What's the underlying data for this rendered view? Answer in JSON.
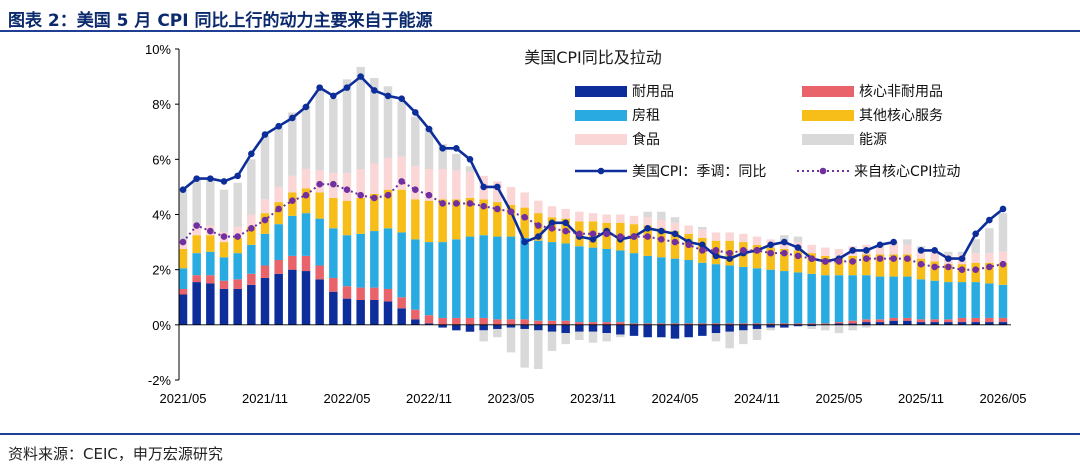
{
  "header": {
    "title": "图表 2：美国 5 月 CPI 同比上行的动力主要来自于能源"
  },
  "footer": {
    "source": "资料来源：CEIC，申万宏源研究"
  },
  "colors": {
    "durable": "#0d2e9a",
    "core_nondurable": "#e8646a",
    "shelter": "#29abe2",
    "other_services": "#f7bd18",
    "food": "#fbd6d6",
    "energy": "#d9d9d9",
    "cpi_line": "#0d2e9a",
    "core_line": "#7030a0",
    "accent_rule": "#1e3f93"
  },
  "chart_data": {
    "type": "bar",
    "stacked": true,
    "title": "美国CPI同比及拉动",
    "ylim": [
      -2,
      10
    ],
    "yticks": [
      "-2%",
      "0%",
      "2%",
      "4%",
      "6%",
      "8%",
      "10%"
    ],
    "ytick_values": [
      -2,
      0,
      2,
      4,
      6,
      8,
      10
    ],
    "xtick_labels": [
      "2021/05",
      "2021/11",
      "2022/05",
      "2022/11",
      "2023/05",
      "2023/11",
      "2024/05",
      "2024/11",
      "2025/05",
      "2025/11",
      "2026/05"
    ],
    "x": [
      "2021/05",
      "2021/06",
      "2021/07",
      "2021/08",
      "2021/09",
      "2021/10",
      "2021/11",
      "2021/12",
      "2022/01",
      "2022/02",
      "2022/03",
      "2022/04",
      "2022/05",
      "2022/06",
      "2022/07",
      "2022/08",
      "2022/09",
      "2022/10",
      "2022/11",
      "2022/12",
      "2023/01",
      "2023/02",
      "2023/03",
      "2023/04",
      "2023/05",
      "2023/06",
      "2023/07",
      "2023/08",
      "2023/09",
      "2023/10",
      "2023/11",
      "2023/12",
      "2024/01",
      "2024/02",
      "2024/03",
      "2024/04",
      "2024/05",
      "2024/06",
      "2024/07",
      "2024/08",
      "2024/09",
      "2024/10",
      "2024/11",
      "2024/12",
      "2025/01",
      "2025/02",
      "2025/03",
      "2025/04",
      "2025/05",
      "2025/06",
      "2025/07",
      "2025/08",
      "2025/09",
      "2025/10",
      "2025/11",
      "2025/12",
      "2026/01",
      "2026/02",
      "2026/03",
      "2026/04",
      "2026/05"
    ],
    "legend_position": "top-right",
    "grid": false,
    "series": [
      {
        "name": "耐用品",
        "color": "#0d2e9a",
        "values": [
          1.1,
          1.55,
          1.5,
          1.3,
          1.3,
          1.45,
          1.7,
          1.85,
          2.0,
          1.95,
          1.65,
          1.2,
          0.95,
          0.9,
          0.9,
          0.85,
          0.6,
          0.2,
          0.05,
          -0.1,
          -0.2,
          -0.25,
          -0.2,
          -0.15,
          -0.1,
          -0.15,
          -0.2,
          -0.25,
          -0.3,
          -0.25,
          -0.25,
          -0.3,
          -0.35,
          -0.4,
          -0.45,
          -0.45,
          -0.5,
          -0.45,
          -0.4,
          -0.3,
          -0.25,
          -0.2,
          -0.15,
          -0.1,
          -0.1,
          -0.05,
          -0.05,
          0.0,
          0.05,
          0.05,
          0.1,
          0.1,
          0.15,
          0.15,
          0.1,
          0.1,
          0.1,
          0.1,
          0.1,
          0.1,
          0.1
        ]
      },
      {
        "name": "核心非耐用品",
        "color": "#e8646a",
        "values": [
          0.2,
          0.25,
          0.3,
          0.3,
          0.35,
          0.4,
          0.45,
          0.5,
          0.5,
          0.55,
          0.5,
          0.5,
          0.45,
          0.45,
          0.45,
          0.45,
          0.4,
          0.35,
          0.3,
          0.25,
          0.25,
          0.25,
          0.25,
          0.2,
          0.2,
          0.2,
          0.15,
          0.15,
          0.15,
          0.1,
          0.1,
          0.1,
          0.1,
          0.05,
          0.05,
          0.05,
          0.05,
          0.05,
          0.05,
          0.05,
          0.05,
          0.05,
          0.05,
          0.05,
          0.05,
          0.05,
          0.05,
          0.05,
          0.05,
          0.1,
          0.1,
          0.1,
          0.1,
          0.1,
          0.1,
          0.1,
          0.1,
          0.15,
          0.15,
          0.15,
          0.15
        ]
      },
      {
        "name": "房租",
        "color": "#29abe2",
        "values": [
          0.75,
          0.8,
          0.85,
          0.85,
          0.95,
          1.05,
          1.15,
          1.3,
          1.45,
          1.55,
          1.7,
          1.8,
          1.85,
          1.95,
          2.05,
          2.2,
          2.35,
          2.55,
          2.65,
          2.75,
          2.85,
          2.95,
          3.0,
          3.0,
          3.0,
          2.95,
          2.9,
          2.85,
          2.8,
          2.75,
          2.7,
          2.65,
          2.6,
          2.55,
          2.45,
          2.4,
          2.35,
          2.3,
          2.2,
          2.15,
          2.1,
          2.05,
          2.0,
          1.95,
          1.9,
          1.85,
          1.8,
          1.75,
          1.7,
          1.65,
          1.6,
          1.55,
          1.5,
          1.5,
          1.45,
          1.4,
          1.35,
          1.3,
          1.3,
          1.25,
          1.2
        ]
      },
      {
        "name": "其他核心服务",
        "color": "#f7bd18",
        "values": [
          0.7,
          0.65,
          0.6,
          0.55,
          0.55,
          0.65,
          0.75,
          0.8,
          0.85,
          0.9,
          0.95,
          1.1,
          1.25,
          1.3,
          1.35,
          1.4,
          1.55,
          1.45,
          1.5,
          1.55,
          1.45,
          1.4,
          1.3,
          1.25,
          1.15,
          1.1,
          1.0,
          0.9,
          0.9,
          0.9,
          0.95,
          0.95,
          1.0,
          1.05,
          1.1,
          1.05,
          1.0,
          0.95,
          0.9,
          0.85,
          0.9,
          0.9,
          0.85,
          0.8,
          0.8,
          0.8,
          0.75,
          0.7,
          0.65,
          0.7,
          0.75,
          0.8,
          0.8,
          0.8,
          0.75,
          0.7,
          0.65,
          0.65,
          0.7,
          0.75,
          0.8
        ]
      },
      {
        "name": "食品",
        "color": "#fbd6d6",
        "values": [
          0.3,
          0.3,
          0.35,
          0.35,
          0.4,
          0.45,
          0.5,
          0.55,
          0.6,
          0.7,
          0.8,
          0.9,
          1.0,
          1.05,
          1.1,
          1.15,
          1.2,
          1.2,
          1.15,
          1.1,
          1.05,
          0.95,
          0.85,
          0.75,
          0.65,
          0.55,
          0.45,
          0.4,
          0.35,
          0.35,
          0.3,
          0.3,
          0.3,
          0.3,
          0.3,
          0.3,
          0.3,
          0.3,
          0.3,
          0.3,
          0.3,
          0.3,
          0.3,
          0.3,
          0.3,
          0.3,
          0.3,
          0.3,
          0.3,
          0.35,
          0.35,
          0.35,
          0.35,
          0.35,
          0.35,
          0.35,
          0.35,
          0.35,
          0.35,
          0.35,
          0.4
        ]
      },
      {
        "name": "能源",
        "color": "#d9d9d9",
        "values": [
          1.85,
          1.75,
          1.7,
          1.55,
          1.6,
          2.0,
          2.3,
          2.2,
          2.3,
          2.3,
          2.9,
          2.7,
          3.4,
          3.7,
          3.1,
          2.6,
          2.0,
          1.8,
          1.5,
          0.9,
          0.6,
          0.2,
          -0.4,
          -0.3,
          -0.9,
          -1.4,
          -1.4,
          -0.7,
          -0.4,
          -0.3,
          -0.4,
          -0.3,
          -0.1,
          0.0,
          0.2,
          0.3,
          0.2,
          0.0,
          0.1,
          -0.3,
          -0.6,
          -0.5,
          -0.4,
          -0.1,
          0.2,
          0.2,
          -0.1,
          -0.2,
          -0.3,
          -0.2,
          -0.1,
          0.0,
          0.1,
          0.2,
          0.1,
          0.0,
          0.1,
          0.1,
          0.5,
          0.9,
          1.4
        ]
      },
      {
        "name": "美国CPI：季调：同比",
        "type": "line",
        "color": "#0d2e9a",
        "values": [
          4.9,
          5.3,
          5.3,
          5.2,
          5.4,
          6.2,
          6.9,
          7.2,
          7.5,
          7.9,
          8.6,
          8.3,
          8.6,
          9.0,
          8.5,
          8.3,
          8.2,
          7.7,
          7.1,
          6.4,
          6.4,
          6.0,
          5.0,
          5.0,
          4.1,
          3.0,
          3.2,
          3.7,
          3.7,
          3.2,
          3.1,
          3.4,
          3.1,
          3.2,
          3.5,
          3.4,
          3.3,
          3.0,
          2.9,
          2.5,
          2.4,
          2.6,
          2.7,
          2.9,
          3.0,
          2.8,
          2.4,
          2.3,
          2.4,
          2.7,
          2.7,
          2.9,
          3.0,
          null,
          2.7,
          2.7,
          2.4,
          2.4,
          3.3,
          3.8,
          4.2
        ]
      },
      {
        "name": "来自核心CPI拉动",
        "type": "line",
        "dotted": true,
        "color": "#7030a0",
        "values": [
          3.0,
          3.6,
          3.4,
          3.2,
          3.2,
          3.5,
          3.8,
          4.2,
          4.5,
          4.7,
          5.1,
          5.1,
          4.9,
          4.7,
          4.6,
          4.7,
          5.2,
          4.9,
          4.7,
          4.4,
          4.4,
          4.4,
          4.3,
          4.2,
          4.1,
          3.9,
          3.6,
          3.5,
          3.4,
          3.3,
          3.3,
          3.3,
          3.2,
          3.2,
          3.2,
          3.1,
          3.0,
          2.9,
          2.7,
          2.7,
          2.6,
          2.7,
          2.7,
          2.6,
          2.6,
          2.5,
          2.4,
          2.3,
          2.3,
          2.3,
          2.4,
          2.4,
          2.4,
          2.4,
          2.2,
          2.1,
          2.1,
          2.0,
          2.0,
          2.1,
          2.2
        ]
      }
    ]
  }
}
